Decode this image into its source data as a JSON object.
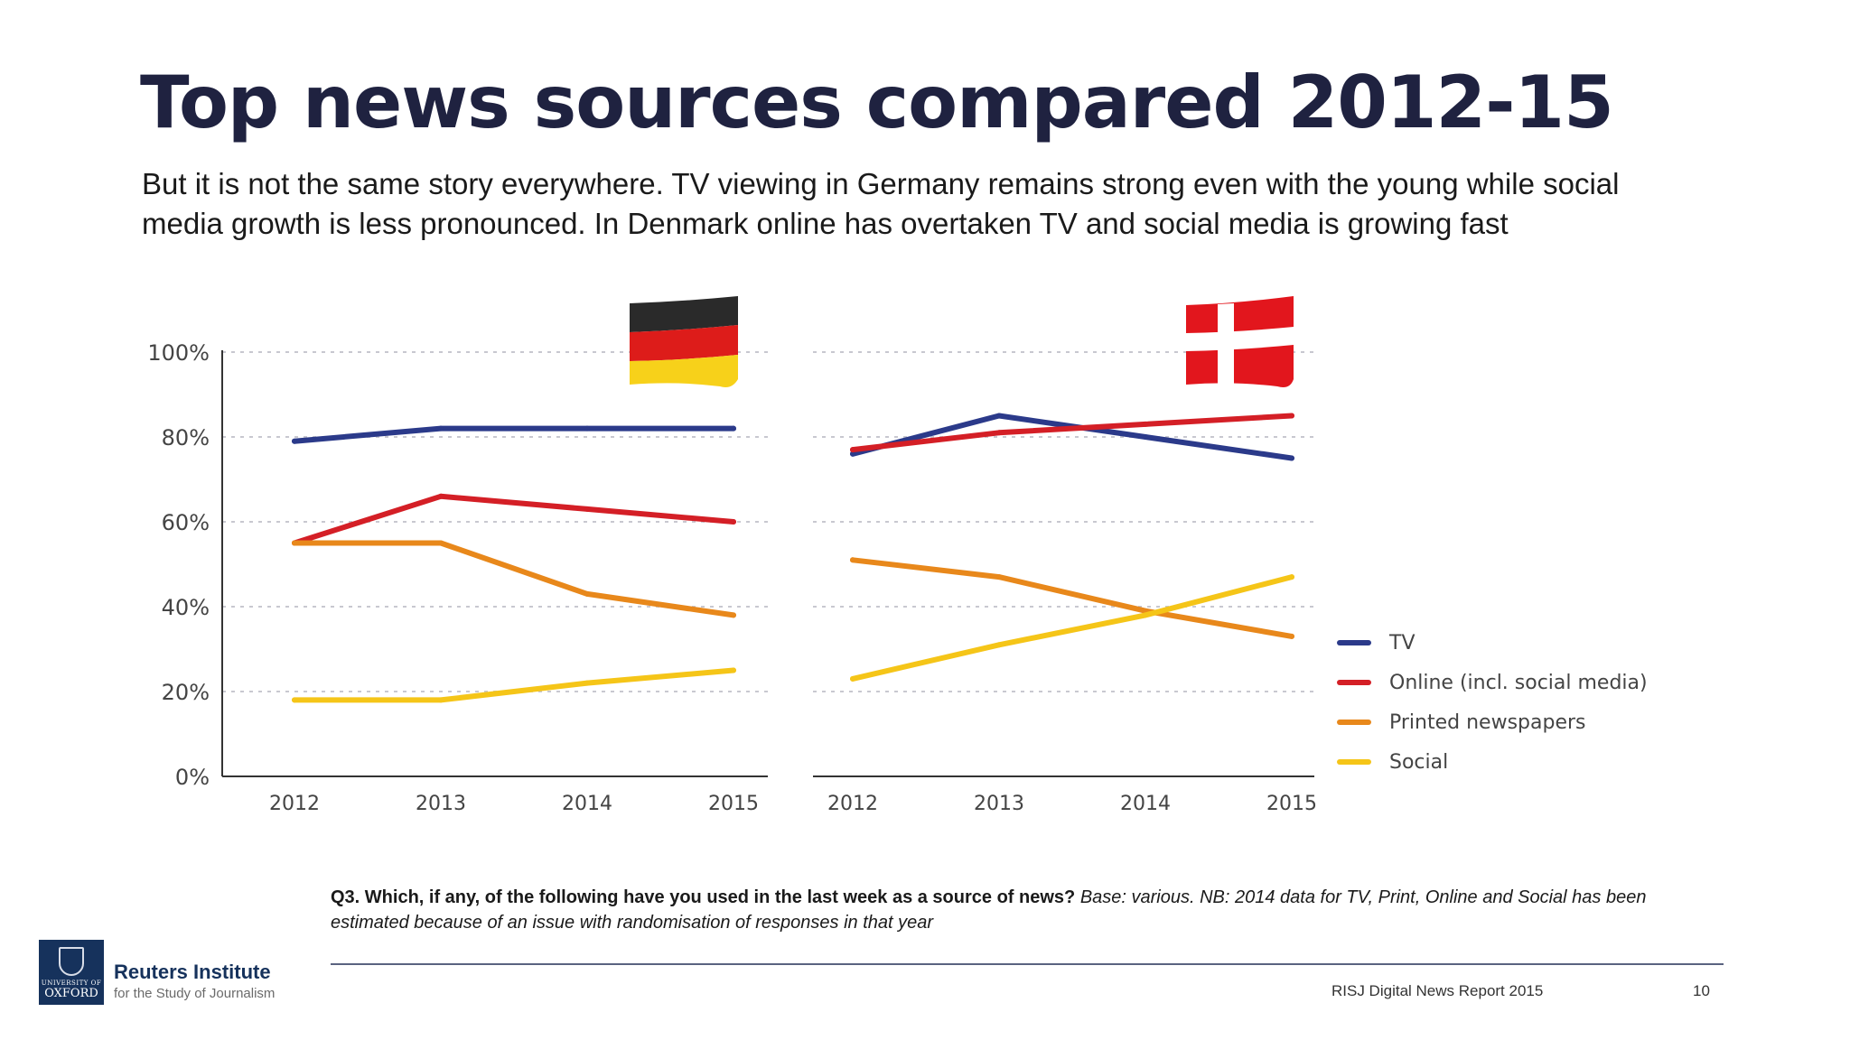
{
  "slide": {
    "title": "Top news sources compared 2012-15",
    "subtitle": "But it is not the same story everywhere. TV viewing in Germany remains strong even with the young while social media growth is less pronounced. In Denmark online has overtaken TV and social media is growing fast",
    "footnote_bold": "Q3. Which, if any, of the following have you used in the last week as a source of news?",
    "footnote_italic": "Base: various. NB: 2014 data for TV, Print, Online and Social has been estimated because of an issue with randomisation of responses in that year",
    "report_name": "RISJ Digital News Report 2015",
    "page_number": "10"
  },
  "logo": {
    "oxford_small": "UNIVERSITY OF",
    "oxford": "OXFORD",
    "name": "Reuters Institute",
    "sub": "for the Study of Journalism"
  },
  "colors": {
    "TV": "#2b3a8a",
    "Online (incl. social media)": "#d41f26",
    "Printed newspapers": "#e8881b",
    "Social": "#f5c518",
    "title": "#1f2240"
  },
  "icons": [
    "germany-flag-icon",
    "denmark-flag-icon",
    "oxford-crest-icon"
  ],
  "chart_data": [
    {
      "type": "line",
      "panel": "Germany",
      "x": [
        "2012",
        "2013",
        "2014",
        "2015"
      ],
      "ylim": [
        0,
        100
      ],
      "yticks": [
        "0%",
        "20%",
        "40%",
        "60%",
        "80%",
        "100%"
      ],
      "grid": true,
      "series": [
        {
          "name": "TV",
          "values": [
            79,
            82,
            82,
            82
          ]
        },
        {
          "name": "Online (incl. social media)",
          "values": [
            55,
            66,
            63,
            60
          ]
        },
        {
          "name": "Printed newspapers",
          "values": [
            55,
            55,
            43,
            38
          ]
        },
        {
          "name": "Social",
          "values": [
            18,
            18,
            22,
            25
          ]
        }
      ]
    },
    {
      "type": "line",
      "panel": "Denmark",
      "x": [
        "2012",
        "2013",
        "2014",
        "2015"
      ],
      "ylim": [
        0,
        100
      ],
      "grid": true,
      "series": [
        {
          "name": "TV",
          "values": [
            76,
            85,
            80,
            75
          ]
        },
        {
          "name": "Online (incl. social media)",
          "values": [
            77,
            81,
            83,
            85
          ]
        },
        {
          "name": "Printed newspapers",
          "values": [
            51,
            47,
            39,
            33
          ]
        },
        {
          "name": "Social",
          "values": [
            23,
            31,
            38,
            47
          ]
        }
      ]
    }
  ],
  "legend": {
    "placement": "right",
    "items": [
      "TV",
      "Online (incl. social media)",
      "Printed newspapers",
      "Social"
    ]
  }
}
